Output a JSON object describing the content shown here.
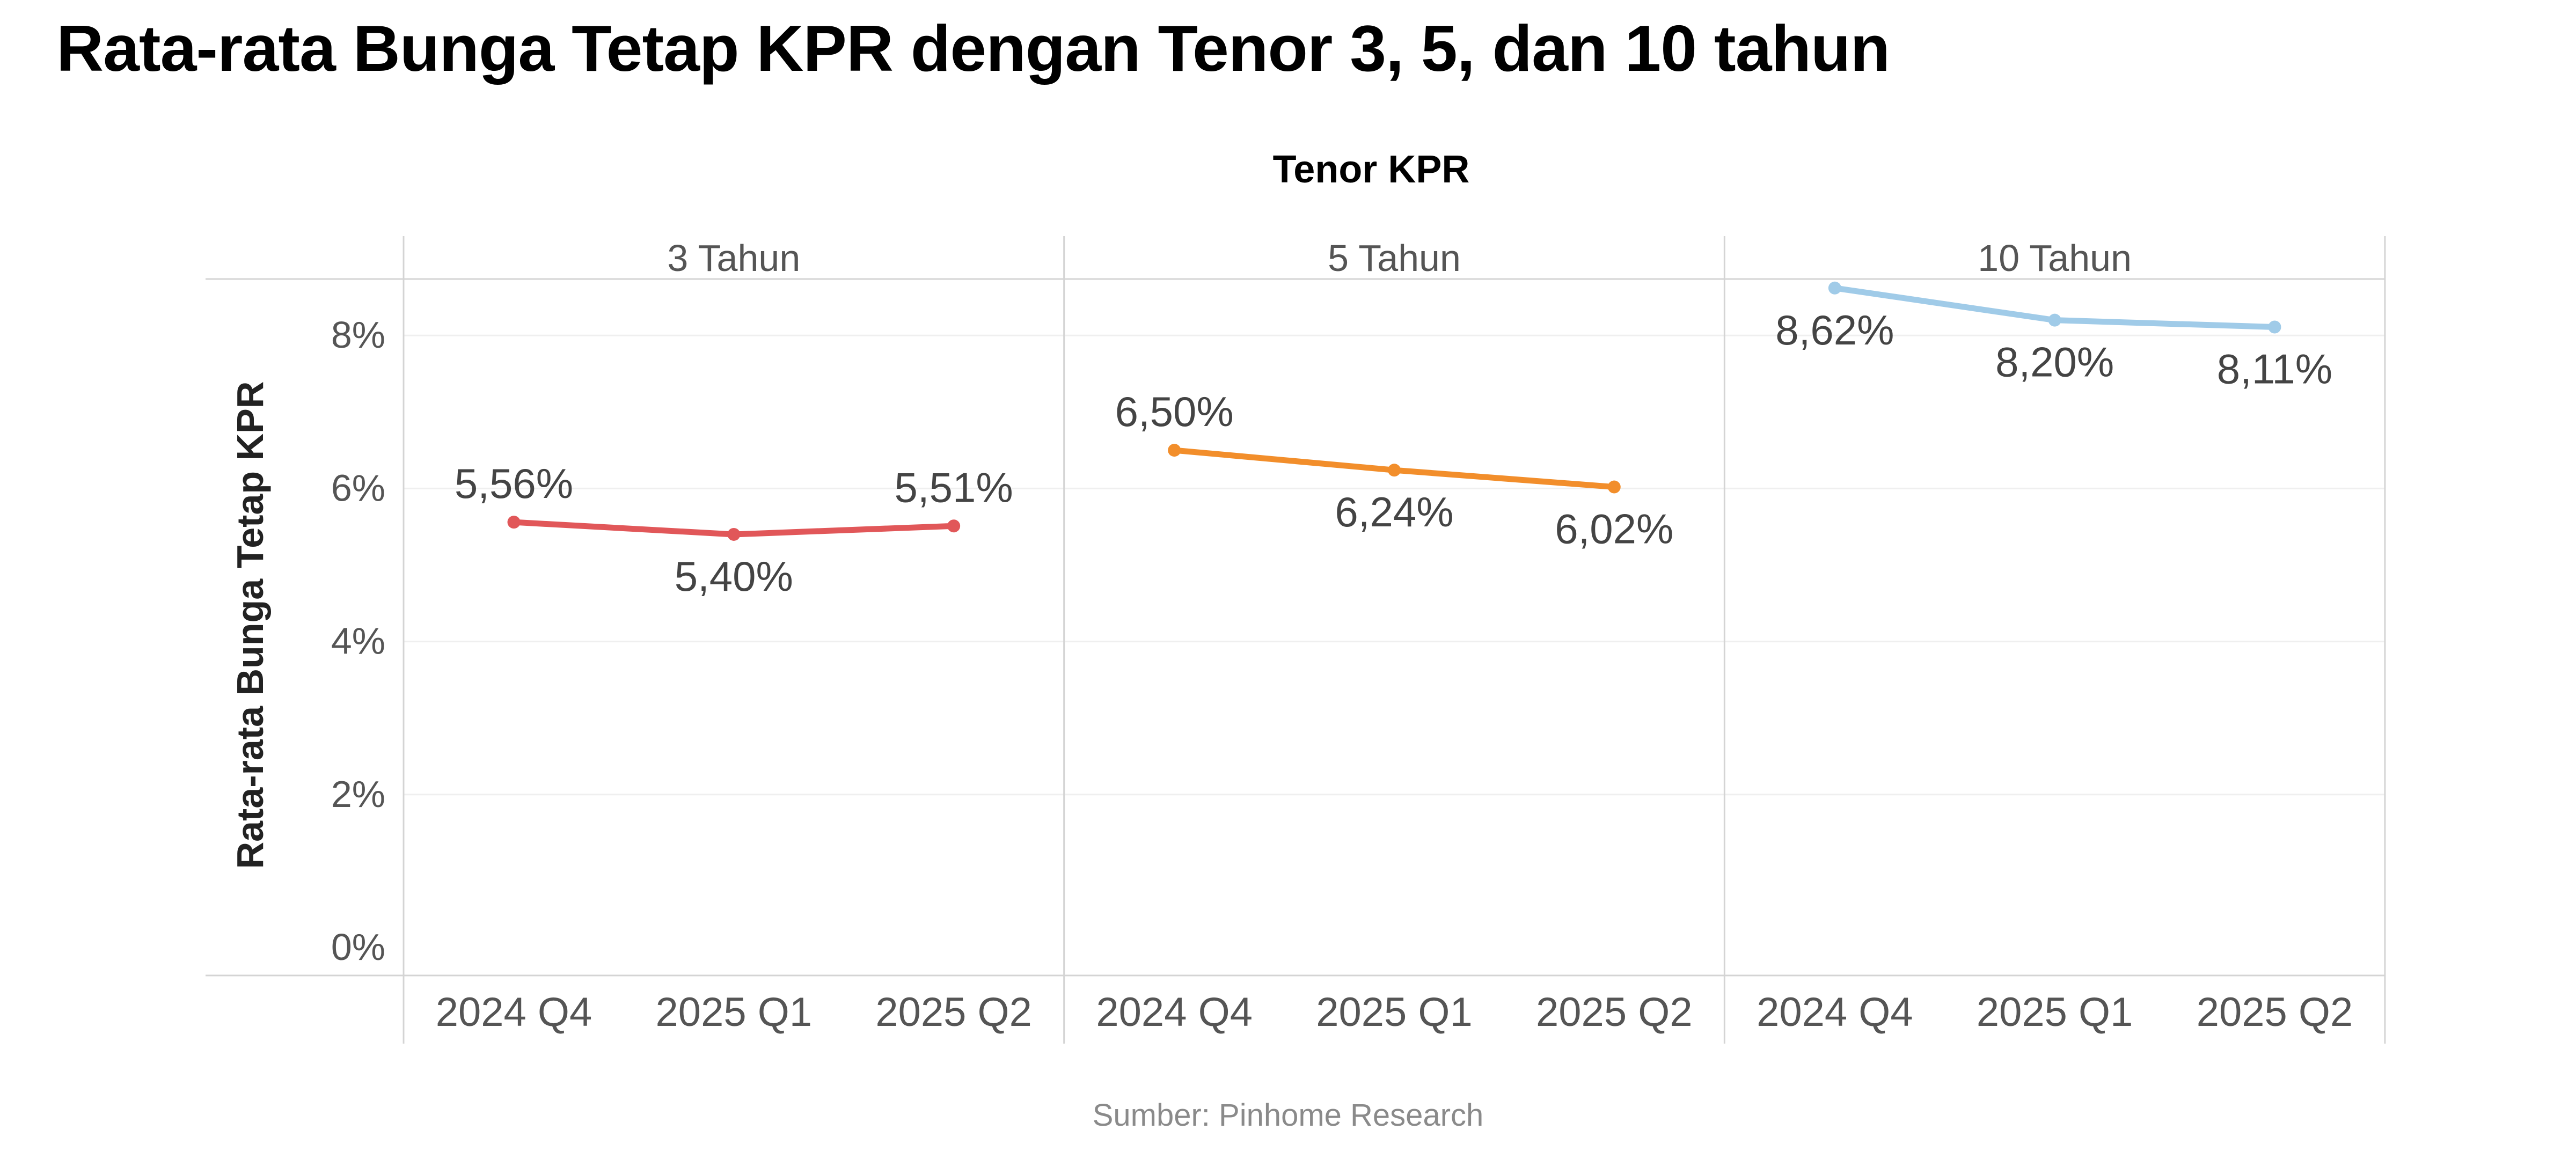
{
  "title": "Rata-rata Bunga Tetap KPR dengan Tenor 3, 5, dan 10 tahun",
  "source": "Sumber: Pinhome Research",
  "chart_data": {
    "type": "line",
    "column_header": "Tenor KPR",
    "ylabel": "Rata-rata Bunga Tetap KPR",
    "ylim": [
      0,
      9
    ],
    "y_ticks": [
      "0%",
      "2%",
      "4%",
      "6%",
      "8%"
    ],
    "y_tick_values": [
      0,
      2,
      4,
      6,
      8
    ],
    "grid": true,
    "categories": [
      "2024 Q4",
      "2025 Q1",
      "2025 Q2"
    ],
    "panels": [
      {
        "name": "3 Tahun",
        "color": "#e15759",
        "values": [
          5.56,
          5.4,
          5.51
        ],
        "labels": [
          "5,56%",
          "5,40%",
          "5,51%"
        ],
        "label_positions": [
          "above",
          "below",
          "above"
        ]
      },
      {
        "name": "5 Tahun",
        "color": "#f28e2b",
        "values": [
          6.5,
          6.24,
          6.02
        ],
        "labels": [
          "6,50%",
          "6,24%",
          "6,02%"
        ],
        "label_positions": [
          "above",
          "below",
          "below"
        ]
      },
      {
        "name": "10 Tahun",
        "color": "#a0cbe8",
        "values": [
          8.62,
          8.2,
          8.11
        ],
        "labels": [
          "8,62%",
          "8,20%",
          "8,11%"
        ],
        "label_positions": [
          "below",
          "below",
          "below"
        ]
      }
    ]
  }
}
